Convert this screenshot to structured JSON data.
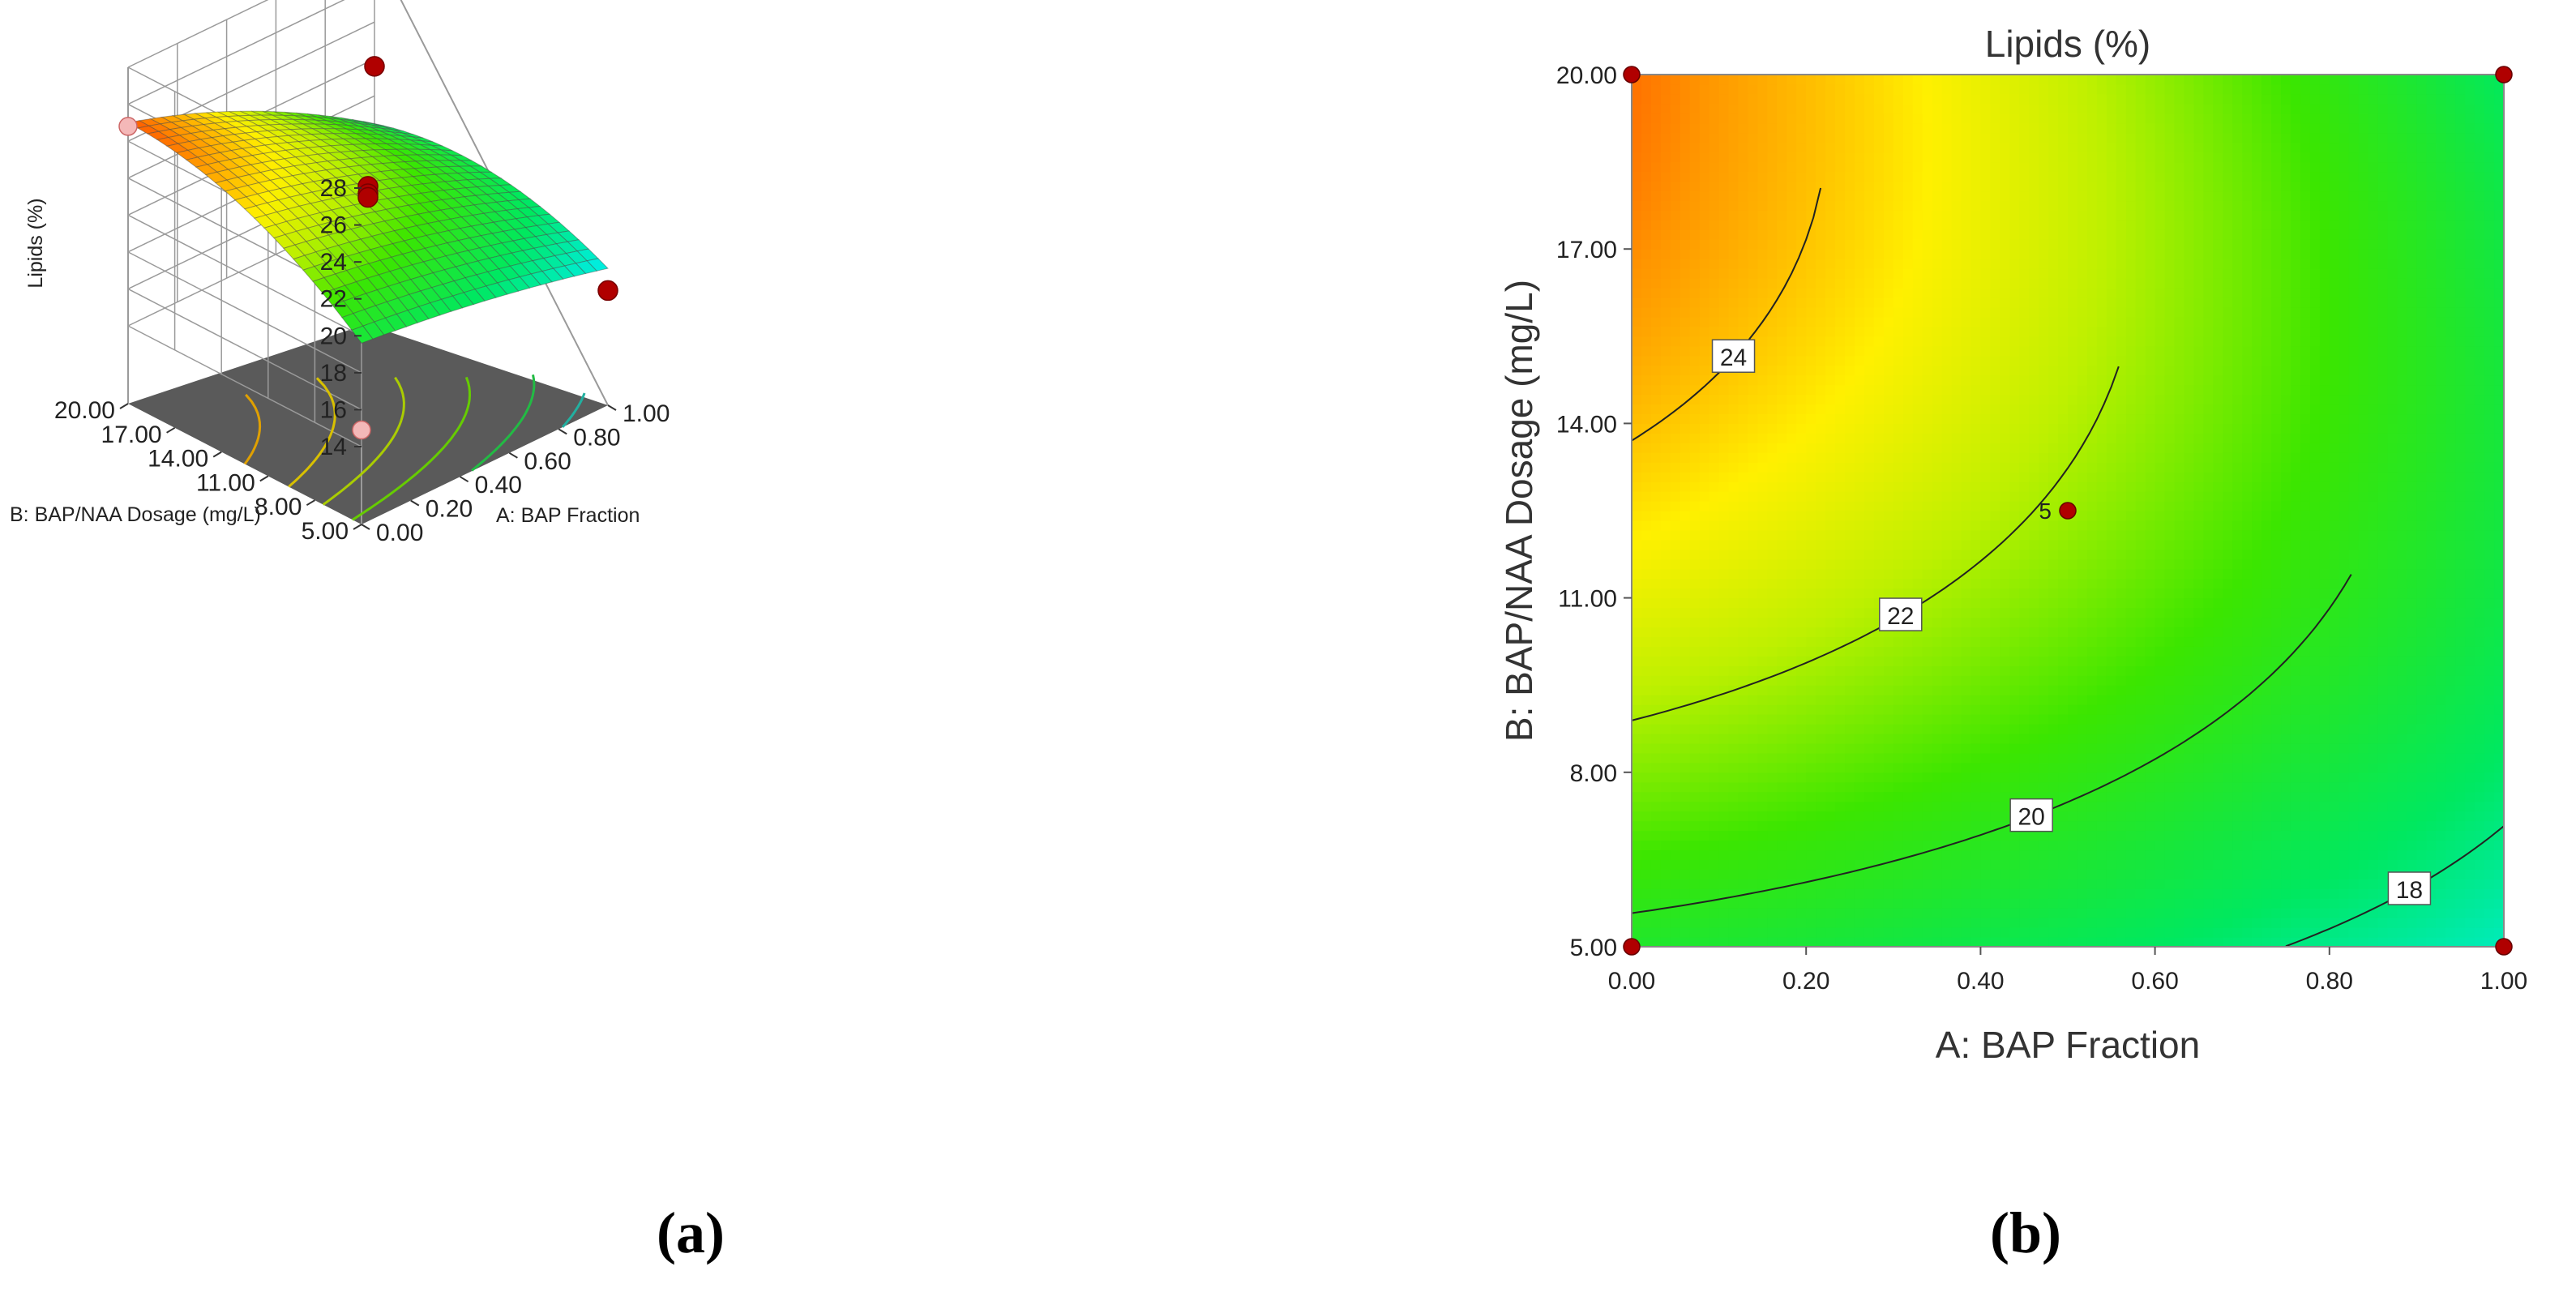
{
  "chart_data": [
    {
      "type": "surface3d",
      "panel": "a",
      "title": "",
      "zlabel": "Lipids (%)",
      "xlabel": "A: BAP Fraction",
      "ylabel": "B: BAP/NAA Dosage (mg/L)",
      "x_ticks": [
        "0.00",
        "0.20",
        "0.40",
        "0.60",
        "0.80",
        "1.00"
      ],
      "y_ticks": [
        "5.00",
        "8.00",
        "11.00",
        "14.00",
        "17.00",
        "20.00"
      ],
      "z_ticks": [
        "14",
        "16",
        "18",
        "20",
        "22",
        "24",
        "26",
        "28"
      ],
      "xlim": [
        0,
        1
      ],
      "ylim": [
        5,
        20
      ],
      "zlim": [
        14,
        28
      ],
      "corner_values": {
        "a0_b5": 19.6,
        "a1_b5": 17.2,
        "a0_b20": 25.0,
        "a1_b20": 18.5
      },
      "design_points": [
        {
          "a": 0,
          "b": 5,
          "lipids": 14.9,
          "below_surface": true
        },
        {
          "a": 0,
          "b": 20,
          "lipids": 24.8,
          "below_surface": true
        },
        {
          "a": 1,
          "b": 20,
          "lipids": 21.6,
          "below_surface": false
        },
        {
          "a": 1,
          "b": 5,
          "lipids": 16.0,
          "below_surface": false
        },
        {
          "a": 0.5,
          "b": 12.5,
          "lipids": 21.6,
          "below_surface": false
        },
        {
          "a": 0.5,
          "b": 12.5,
          "lipids": 21.2,
          "below_surface": false
        },
        {
          "a": 0.5,
          "b": 12.5,
          "lipids": 21.0,
          "below_surface": false
        }
      ]
    },
    {
      "type": "contour",
      "panel": "b",
      "title": "Lipids (%)",
      "xlabel": "A: BAP Fraction",
      "ylabel": "B: BAP/NAA Dosage (mg/L)",
      "x_ticks": [
        "0.00",
        "0.20",
        "0.40",
        "0.60",
        "0.80",
        "1.00"
      ],
      "y_ticks": [
        "5.00",
        "8.00",
        "11.00",
        "14.00",
        "17.00",
        "20.00"
      ],
      "xlim": [
        0,
        1
      ],
      "ylim": [
        5,
        20
      ],
      "contour_levels": [
        "18",
        "20",
        "22",
        "24"
      ],
      "center_label": "5",
      "design_points": [
        {
          "a": 0,
          "b": 20
        },
        {
          "a": 1,
          "b": 20
        },
        {
          "a": 0,
          "b": 5
        },
        {
          "a": 1,
          "b": 5
        },
        {
          "a": 0.5,
          "b": 12.5
        }
      ]
    }
  ],
  "panel_labels": {
    "a": "(a)",
    "b": "(b)"
  }
}
